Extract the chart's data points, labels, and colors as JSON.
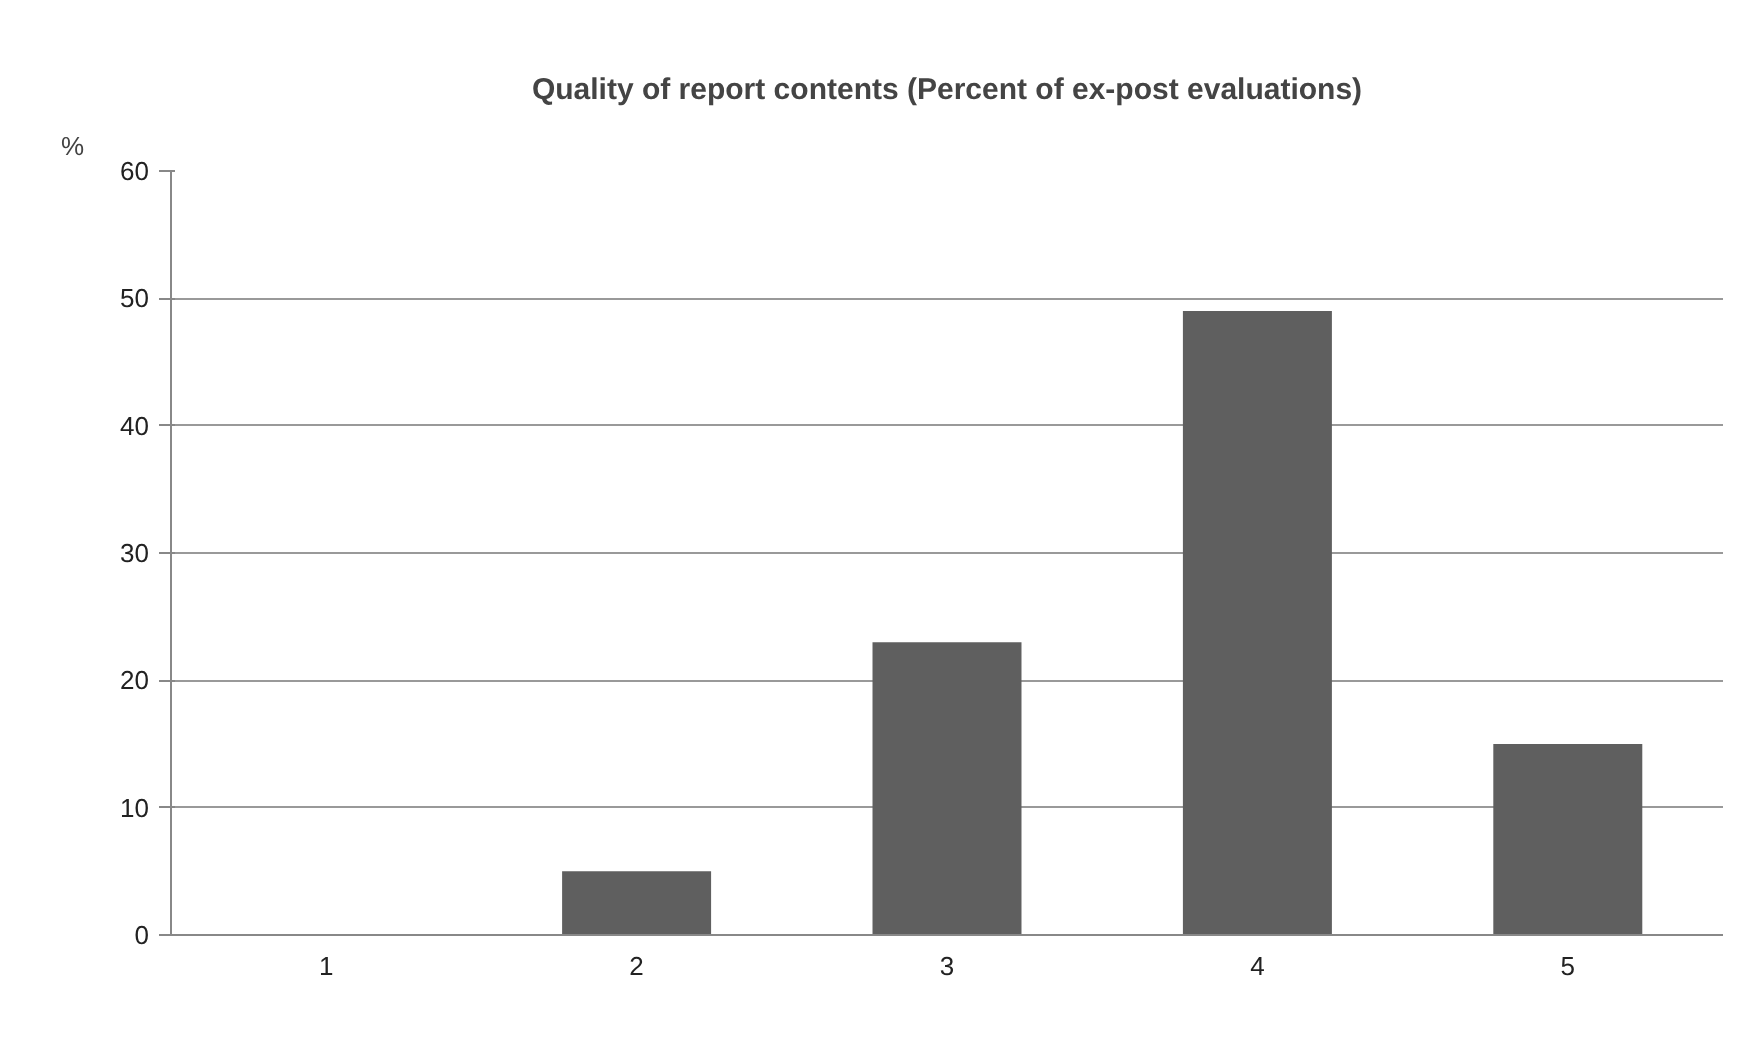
{
  "chart_data": {
    "type": "bar",
    "title": "Quality of report contents (Percent of ex-post evaluations)",
    "ylabel": "%",
    "categories": [
      "1",
      "2",
      "3",
      "4",
      "5"
    ],
    "values": [
      0,
      5,
      23,
      49,
      15
    ],
    "color": "#5f5f5f",
    "ylim": [
      0,
      60
    ],
    "yticks": [
      0,
      10,
      20,
      30,
      40,
      50,
      60
    ],
    "grid": "y"
  }
}
